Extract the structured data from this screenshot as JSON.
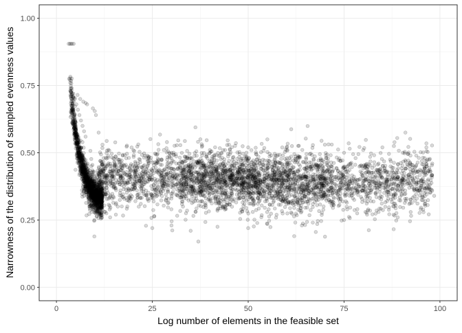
{
  "chart_data": {
    "type": "scatter",
    "xlabel": "Log number of elements in the feasible set",
    "ylabel": "Narrowness of the distribution of sampled evenness values",
    "xlim": [
      -4.5,
      104.5
    ],
    "ylim": [
      -0.05,
      1.05
    ],
    "x_ticks": [
      0,
      25,
      50,
      75,
      100
    ],
    "y_ticks": [
      0.0,
      0.25,
      0.5,
      0.75,
      1.0
    ],
    "x_tick_labels": [
      "0",
      "25",
      "50",
      "75",
      "100"
    ],
    "y_tick_labels": [
      "0.00",
      "0.25",
      "0.50",
      "0.75",
      "1.00"
    ],
    "grid": true,
    "point_color": "#000000",
    "point_alpha": 0.15,
    "series": [
      {
        "points": [
          [
            3.2,
            0.905
          ],
          [
            3.5,
            0.905
          ],
          [
            3.8,
            0.905
          ],
          [
            4.1,
            0.905
          ],
          [
            4.5,
            0.905
          ],
          [
            3.3,
            0.775
          ],
          [
            3.6,
            0.76
          ],
          [
            4.0,
            0.74
          ],
          [
            4.4,
            0.72
          ],
          [
            4.8,
            0.7
          ],
          [
            5.2,
            0.68
          ],
          [
            5.6,
            0.66
          ],
          [
            6.0,
            0.64
          ],
          [
            6.4,
            0.62
          ],
          [
            6.8,
            0.6
          ],
          [
            7.2,
            0.58
          ],
          [
            7.6,
            0.56
          ],
          [
            5.5,
            0.715
          ],
          [
            6.2,
            0.7
          ],
          [
            7.0,
            0.69
          ],
          [
            7.6,
            0.685
          ],
          [
            8.0,
            0.68
          ],
          [
            9.5,
            0.665
          ],
          [
            10.0,
            0.655
          ],
          [
            10.3,
            0.64
          ],
          [
            11.0,
            0.575
          ],
          [
            12.0,
            0.53
          ],
          [
            11.5,
            0.47
          ],
          [
            12.3,
            0.43
          ],
          [
            13.0,
            0.45
          ],
          [
            14.0,
            0.43
          ],
          [
            15.0,
            0.41
          ],
          [
            13.5,
            0.35
          ],
          [
            14.5,
            0.33
          ],
          [
            16.0,
            0.3
          ],
          [
            12.5,
            0.28
          ],
          [
            14.0,
            0.26
          ],
          [
            15.5,
            0.27
          ],
          [
            17.0,
            0.38
          ],
          [
            18.0,
            0.42
          ],
          [
            19.0,
            0.4
          ],
          [
            20.0,
            0.44
          ],
          [
            21.0,
            0.36
          ],
          [
            22.0,
            0.31
          ],
          [
            23.0,
            0.39
          ],
          [
            24.0,
            0.46
          ],
          [
            25.0,
            0.4
          ],
          [
            26.0,
            0.35
          ],
          [
            27.0,
            0.43
          ],
          [
            28.0,
            0.51
          ],
          [
            29.0,
            0.38
          ],
          [
            30.0,
            0.33
          ],
          [
            31.0,
            0.41
          ],
          [
            32.0,
            0.46
          ],
          [
            33.0,
            0.3
          ],
          [
            34.0,
            0.39
          ],
          [
            35.0,
            0.44
          ],
          [
            36.0,
            0.36
          ],
          [
            37.0,
            0.42
          ],
          [
            38.0,
            0.49
          ],
          [
            39.0,
            0.33
          ],
          [
            40.0,
            0.38
          ],
          [
            41.0,
            0.45
          ],
          [
            42.0,
            0.29
          ],
          [
            43.0,
            0.4
          ],
          [
            44.0,
            0.35
          ],
          [
            45.0,
            0.47
          ],
          [
            46.0,
            0.42
          ],
          [
            47.0,
            0.36
          ],
          [
            48.0,
            0.44
          ],
          [
            49.0,
            0.39
          ],
          [
            50.0,
            0.52
          ],
          [
            51.0,
            0.33
          ],
          [
            52.0,
            0.41
          ],
          [
            53.0,
            0.46
          ],
          [
            54.0,
            0.37
          ],
          [
            55.0,
            0.43
          ],
          [
            56.0,
            0.49
          ],
          [
            57.0,
            0.34
          ],
          [
            58.0,
            0.4
          ],
          [
            59.0,
            0.45
          ],
          [
            60.0,
            0.31
          ],
          [
            61.0,
            0.38
          ],
          [
            62.0,
            0.42
          ],
          [
            63.0,
            0.47
          ],
          [
            64.0,
            0.36
          ],
          [
            65.0,
            0.43
          ],
          [
            66.0,
            0.39
          ],
          [
            67.0,
            0.33
          ],
          [
            68.0,
            0.45
          ],
          [
            69.0,
            0.4
          ],
          [
            70.0,
            0.37
          ],
          [
            71.0,
            0.44
          ],
          [
            72.0,
            0.35
          ],
          [
            73.0,
            0.41
          ],
          [
            74.0,
            0.47
          ],
          [
            75.0,
            0.38
          ],
          [
            76.0,
            0.43
          ],
          [
            77.0,
            0.35
          ],
          [
            78.0,
            0.48
          ],
          [
            79.0,
            0.4
          ],
          [
            80.0,
            0.37
          ],
          [
            81.0,
            0.44
          ],
          [
            82.0,
            0.32
          ],
          [
            83.0,
            0.41
          ],
          [
            84.0,
            0.46
          ],
          [
            85.0,
            0.38
          ],
          [
            86.0,
            0.43
          ],
          [
            87.0,
            0.36
          ],
          [
            88.0,
            0.3
          ],
          [
            89.0,
            0.41
          ],
          [
            91.0,
            0.575
          ],
          [
            92.0,
            0.37
          ],
          [
            93.0,
            0.4
          ],
          [
            94.0,
            0.33
          ],
          [
            96.0,
            0.48
          ],
          [
            97.0,
            0.38
          ],
          [
            98.0,
            0.46
          ],
          [
            98.5,
            0.34
          ],
          [
            30.0,
            0.5
          ],
          [
            40.0,
            0.51
          ],
          [
            45.0,
            0.53
          ],
          [
            55.0,
            0.55
          ],
          [
            60.0,
            0.52
          ],
          [
            70.0,
            0.53
          ],
          [
            75.0,
            0.5
          ],
          [
            80.0,
            0.51
          ],
          [
            85.0,
            0.52
          ],
          [
            88.0,
            0.525
          ],
          [
            25.0,
            0.22
          ],
          [
            30.0,
            0.23
          ],
          [
            35.0,
            0.21
          ],
          [
            37.0,
            0.17
          ],
          [
            42.0,
            0.225
          ],
          [
            50.0,
            0.22
          ],
          [
            55.0,
            0.235
          ],
          [
            62.0,
            0.19
          ],
          [
            64.0,
            0.23
          ],
          [
            68.0,
            0.235
          ],
          [
            75.0,
            0.25
          ],
          [
            81.0,
            0.27
          ],
          [
            84.0,
            0.28
          ],
          [
            89.0,
            0.26
          ],
          [
            92.0,
            0.31
          ],
          [
            95.0,
            0.29
          ]
        ]
      }
    ]
  }
}
